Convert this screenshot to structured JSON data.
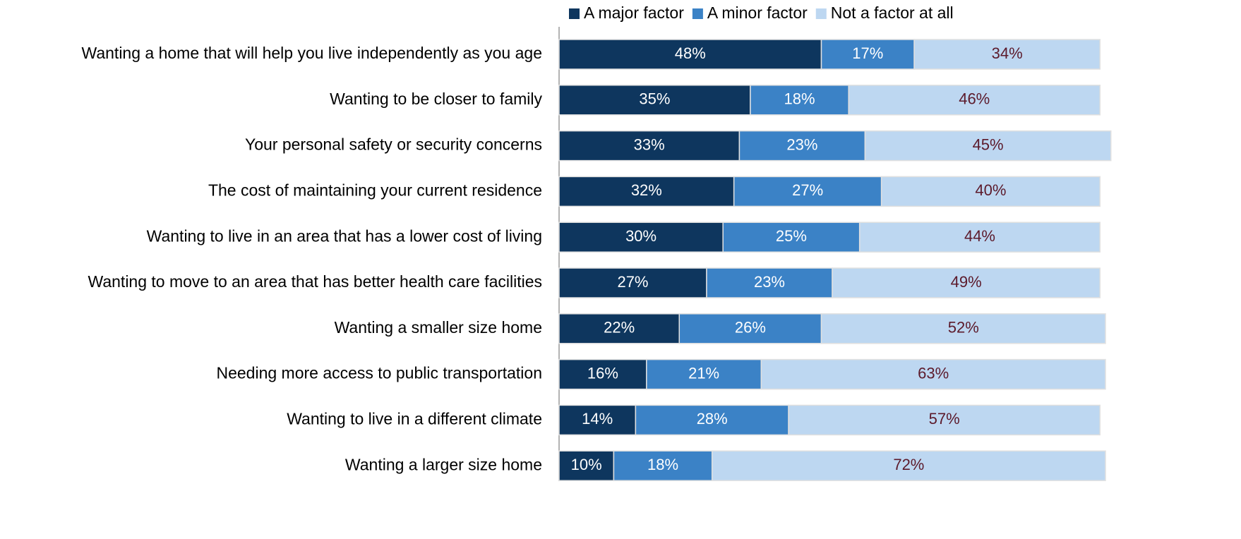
{
  "chart_data": {
    "type": "stacked-barh",
    "categories": [
      "Wanting a home that will help you live independently as you age",
      "Wanting to be closer to family",
      "Your personal safety or security concerns",
      "The cost of maintaining your current residence",
      "Wanting to live in an area that has a lower cost of living",
      "Wanting to move to an area that has better health care facilities",
      "Wanting a smaller size home",
      "Needing more access to public transportation",
      "Wanting to live in a different climate",
      "Wanting a larger size home"
    ],
    "series": [
      {
        "name": "A major factor",
        "color": "#0e365e",
        "label_color": "#ffffff",
        "values": [
          48,
          35,
          33,
          32,
          30,
          27,
          22,
          16,
          14,
          10
        ],
        "value_labels": [
          "48%",
          "35%",
          "33%",
          "32%",
          "30%",
          "27%",
          "22%",
          "16%",
          "14%",
          "10%"
        ]
      },
      {
        "name": "A minor factor",
        "color": "#3b82c6",
        "label_color": "#ffffff",
        "values": [
          17,
          18,
          23,
          27,
          25,
          23,
          26,
          21,
          28,
          18
        ],
        "value_labels": [
          "17%",
          "18%",
          "23%",
          "27%",
          "25%",
          "23%",
          "26%",
          "21%",
          "28%",
          "18%"
        ]
      },
      {
        "name": "Not a factor at all",
        "color": "#bdd7f1",
        "label_color": "#5c1a2b",
        "values": [
          34,
          46,
          45,
          40,
          44,
          49,
          52,
          63,
          57,
          72
        ],
        "value_labels": [
          "34%",
          "46%",
          "45%",
          "40%",
          "44%",
          "49%",
          "52%",
          "63%",
          "57%",
          "72%"
        ]
      }
    ],
    "xlim": [
      0,
      100
    ],
    "legend": "top"
  }
}
